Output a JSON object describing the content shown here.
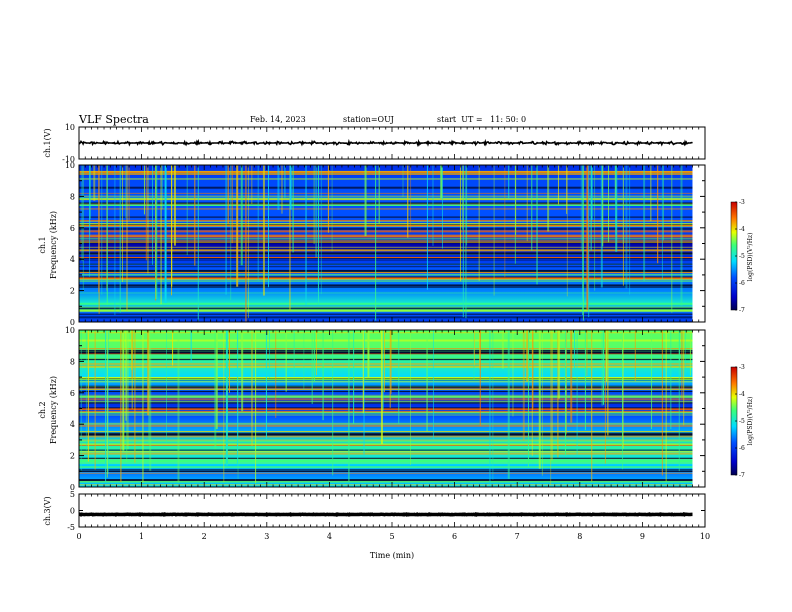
{
  "header": {
    "title": "VLF Spectra",
    "date": "Feb. 14, 2023",
    "station": "station=OUJ",
    "start": "start  UT =   11: 50: 0"
  },
  "chart_data": [
    {
      "type": "line",
      "panel": "ch1-waveform",
      "ylabel": "ch.1(V)",
      "ylim": [
        -10,
        10
      ],
      "yticks": [
        "10",
        "-10"
      ],
      "xlim": [
        0,
        10
      ],
      "series": [
        {
          "baseline": 0,
          "amplitude": 1.0,
          "x_end": 9.8
        }
      ]
    },
    {
      "type": "heatmap",
      "panel": "ch1-spectrogram",
      "ylabel": [
        "ch.1",
        "Frequency (kHz)"
      ],
      "ylim": [
        0,
        10
      ],
      "yticks": [
        "0",
        "2",
        "4",
        "6",
        "8",
        "10"
      ],
      "xlim": [
        0,
        9.8
      ],
      "colorbar": {
        "label": "log(PSD)(V²/Hz)",
        "ticks": [
          "-3",
          "-4",
          "-5",
          "-6",
          "-7"
        ],
        "range": [
          -7,
          -3
        ]
      }
    },
    {
      "type": "heatmap",
      "panel": "ch2-spectrogram",
      "ylabel": [
        "ch.2",
        "Frequency (kHz)"
      ],
      "ylim": [
        0,
        10
      ],
      "yticks": [
        "0",
        "2",
        "4",
        "6",
        "8",
        "10"
      ],
      "xlim": [
        0,
        9.8
      ],
      "colorbar": {
        "label": "log(PSD)(V²/Hz)",
        "ticks": [
          "-3",
          "-4",
          "-5",
          "-6",
          "-7"
        ],
        "range": [
          -7,
          -3
        ]
      }
    },
    {
      "type": "line",
      "panel": "ch3-waveform",
      "ylabel": "ch.3(V)",
      "ylim": [
        -5,
        5
      ],
      "yticks": [
        "5",
        "0",
        "-5"
      ],
      "xlim": [
        0,
        10
      ],
      "series": [
        {
          "baseline": -1.2,
          "amplitude": 0.1,
          "x_end": 9.8
        }
      ]
    }
  ],
  "xaxis": {
    "label": "Time (min)",
    "ticks": [
      "0",
      "1",
      "2",
      "3",
      "4",
      "5",
      "6",
      "7",
      "8",
      "9",
      "10"
    ],
    "range": [
      0,
      10
    ]
  }
}
